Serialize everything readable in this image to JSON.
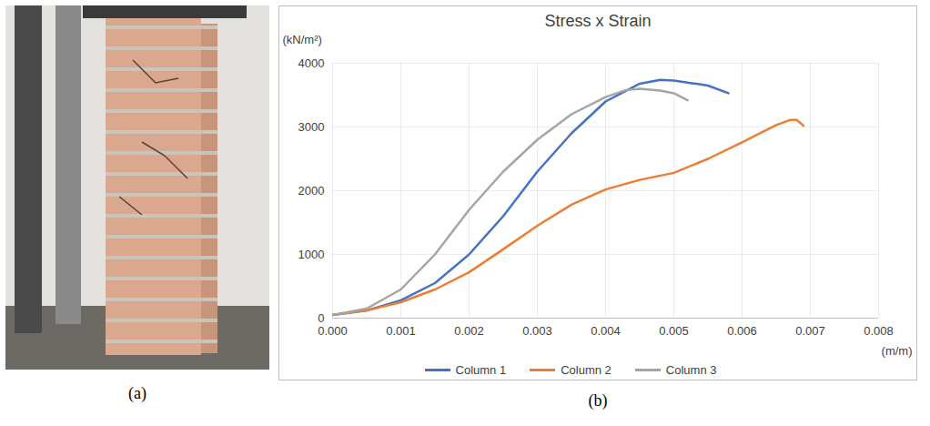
{
  "chart_data": {
    "type": "line",
    "title": "Stress x Strain",
    "y_label": "(kN/m²)",
    "x_label": "(m/m)",
    "panel_labels": [
      "(a)",
      "(b)"
    ],
    "xlim": [
      0,
      0.008
    ],
    "xticks": [
      {
        "value": 0,
        "label": "0.000"
      },
      {
        "value": 0.001,
        "label": "0.001"
      },
      {
        "value": 0.002,
        "label": "0.002"
      },
      {
        "value": 0.003,
        "label": "0.003"
      },
      {
        "value": 0.004,
        "label": "0.004"
      },
      {
        "value": 0.005,
        "label": "0.005"
      },
      {
        "value": 0.006,
        "label": "0.006"
      },
      {
        "value": 0.007,
        "label": "0.007"
      },
      {
        "value": 0.008,
        "label": "0.008"
      }
    ],
    "ylim": [
      0,
      4000
    ],
    "yticks": [
      0,
      1000,
      2000,
      3000,
      4000
    ],
    "grid": true,
    "legend": "bottom",
    "series": [
      {
        "name": "Column 1",
        "color": "#4472c4",
        "x": [
          0,
          0.0005,
          0.001,
          0.0015,
          0.002,
          0.0025,
          0.003,
          0.0035,
          0.004,
          0.0045,
          0.0048,
          0.005,
          0.0055,
          0.0058
        ],
        "values": [
          50,
          120,
          280,
          550,
          1000,
          1600,
          2300,
          2900,
          3400,
          3680,
          3740,
          3730,
          3650,
          3530
        ]
      },
      {
        "name": "Column 2",
        "color": "#ed7d31",
        "x": [
          0,
          0.0005,
          0.001,
          0.0015,
          0.002,
          0.0025,
          0.003,
          0.0035,
          0.004,
          0.0045,
          0.005,
          0.0055,
          0.006,
          0.0065,
          0.0067,
          0.0068,
          0.0069
        ],
        "values": [
          50,
          120,
          250,
          450,
          720,
          1080,
          1450,
          1780,
          2020,
          2170,
          2280,
          2500,
          2760,
          3030,
          3110,
          3110,
          3020
        ]
      },
      {
        "name": "Column 3",
        "color": "#a5a5a5",
        "x": [
          0,
          0.0005,
          0.001,
          0.0015,
          0.002,
          0.0025,
          0.003,
          0.0035,
          0.004,
          0.0043,
          0.0045,
          0.0048,
          0.005,
          0.0052
        ],
        "values": [
          50,
          150,
          450,
          1000,
          1700,
          2300,
          2800,
          3200,
          3470,
          3580,
          3600,
          3570,
          3530,
          3420
        ]
      }
    ]
  }
}
